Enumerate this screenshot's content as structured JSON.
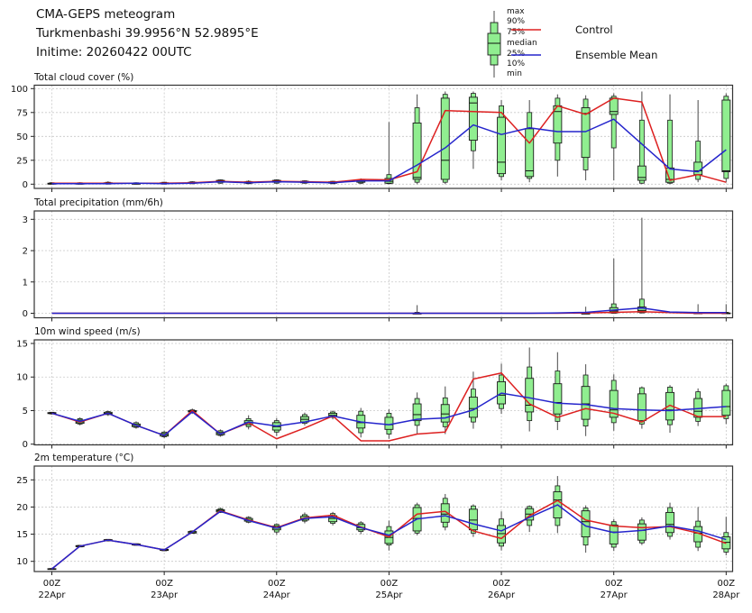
{
  "header": {
    "line1": "CMA-GEPS meteogram",
    "line2": "Turkmenbashi 39.9956°N 52.9895°E",
    "line3": "Initime: 20260422 00UTC"
  },
  "legend": {
    "box_labels": [
      "max",
      "90%",
      "75%",
      "median",
      "25%",
      "10%",
      "min"
    ],
    "control_label": "Control",
    "mean_label": "Ensemble Mean"
  },
  "colors": {
    "box_fill": "#90ee90",
    "box_edge": "#1b1b1b",
    "whisker": "#666666",
    "grid": "#c9c9c9",
    "border": "#333333",
    "control": "#dd2020",
    "mean": "#2525cc"
  },
  "chart_data": {
    "type": "meteogram-boxplot",
    "x_start": "2026-04-22 00UTC",
    "x_step_hours": 6,
    "n_points": 25,
    "x_tick_every": 4,
    "x_tick_labels": [
      {
        "top": "00Z",
        "bottom": "22Apr"
      },
      {
        "top": "00Z",
        "bottom": "23Apr"
      },
      {
        "top": "00Z",
        "bottom": "24Apr"
      },
      {
        "top": "00Z",
        "bottom": "25Apr"
      },
      {
        "top": "00Z",
        "bottom": "26Apr"
      },
      {
        "top": "00Z",
        "bottom": "27Apr"
      },
      {
        "top": "00Z",
        "bottom": "28Apr"
      }
    ],
    "box_stats_order": [
      "min",
      "p10",
      "p25",
      "median",
      "p75",
      "p90",
      "max"
    ],
    "panels": [
      {
        "id": "cloud",
        "title": "Total cloud cover (%)",
        "ylim": [
          0,
          100
        ],
        "yticks": [
          0,
          25,
          50,
          75,
          100
        ],
        "control": [
          1,
          1,
          1,
          1,
          1,
          1.5,
          3,
          2,
          3,
          2.5,
          2,
          5,
          4.5,
          13,
          77,
          76,
          75,
          43,
          82,
          73,
          90,
          86,
          4,
          10,
          2
        ],
        "mean": [
          0.5,
          0.5,
          0.5,
          1,
          0.5,
          1,
          2.5,
          1.5,
          2.5,
          2,
          1.5,
          3.5,
          3.5,
          20,
          38,
          62,
          52,
          59,
          55,
          55,
          68,
          42,
          16,
          13,
          36
        ],
        "boxes": [
          [
            0,
            0,
            0,
            0.5,
            1,
            1.5,
            2
          ],
          [
            0,
            0,
            0,
            0.5,
            1,
            1.5,
            2
          ],
          [
            0,
            0,
            0.5,
            1,
            1.5,
            2,
            3
          ],
          [
            0,
            0,
            0,
            0.5,
            1,
            1.5,
            2
          ],
          [
            0,
            0,
            0.5,
            1,
            1.5,
            2,
            2.5
          ],
          [
            0,
            0.5,
            1,
            1.5,
            2,
            2.5,
            3
          ],
          [
            0.5,
            1,
            2,
            3,
            4,
            4.5,
            5
          ],
          [
            0,
            0.5,
            1,
            2,
            2.5,
            3,
            4
          ],
          [
            0.5,
            1,
            2,
            3,
            4,
            4.5,
            5
          ],
          [
            0.5,
            1,
            1.5,
            2.5,
            3,
            3.5,
            4
          ],
          [
            0,
            0.5,
            1,
            2,
            2.5,
            3,
            3.5
          ],
          [
            0,
            1,
            2,
            3,
            4,
            5,
            6
          ],
          [
            0,
            0.5,
            1,
            3,
            6,
            10,
            65
          ],
          [
            0,
            2,
            5,
            7,
            64,
            80,
            94
          ],
          [
            0,
            2,
            5,
            25,
            90,
            94,
            97
          ],
          [
            16,
            35,
            46,
            85,
            91,
            95,
            97
          ],
          [
            4,
            8,
            11,
            23,
            70,
            82,
            88
          ],
          [
            2,
            6,
            8,
            14,
            58,
            75,
            88
          ],
          [
            8,
            25,
            43,
            76,
            82,
            90,
            94
          ],
          [
            4,
            15,
            28,
            74,
            80,
            89,
            93
          ],
          [
            4,
            38,
            73,
            76,
            90,
            92,
            95
          ],
          [
            0,
            1,
            4,
            7,
            19,
            67,
            97
          ],
          [
            0,
            1,
            2,
            5,
            17,
            67,
            94
          ],
          [
            2,
            5,
            10,
            14,
            23,
            45,
            88
          ],
          [
            2,
            6,
            13,
            14,
            88,
            92,
            95
          ]
        ]
      },
      {
        "id": "precip",
        "title": "Total precipitation (mm/6h)",
        "ylim": [
          0,
          3
        ],
        "yticks": [
          0,
          1,
          2,
          3
        ],
        "control": [
          0,
          0,
          0,
          0,
          0,
          0,
          0,
          0,
          0,
          0,
          0,
          0,
          0,
          0,
          0,
          0,
          0,
          0,
          0,
          0.01,
          0.03,
          0.05,
          0.02,
          0,
          0
        ],
        "mean": [
          0,
          0,
          0,
          0,
          0,
          0,
          0,
          0,
          0,
          0,
          0,
          0,
          0,
          0,
          0,
          0,
          0,
          0,
          0.01,
          0.03,
          0.1,
          0.17,
          0.04,
          0.02,
          0.02
        ],
        "boxes": [
          null,
          null,
          null,
          null,
          null,
          null,
          null,
          null,
          null,
          null,
          null,
          null,
          null,
          [
            0,
            0,
            0,
            0,
            0,
            0.03,
            0.26
          ],
          null,
          null,
          null,
          null,
          null,
          [
            0,
            0,
            0,
            0,
            0,
            0.03,
            0.21
          ],
          [
            0,
            0,
            0.01,
            0.07,
            0.18,
            0.3,
            1.75
          ],
          [
            0,
            0.01,
            0.03,
            0.09,
            0.2,
            0.45,
            3.05
          ],
          null,
          [
            0,
            0,
            0,
            0,
            0.01,
            0.03,
            0.29
          ],
          [
            0,
            0,
            0,
            0,
            0.01,
            0.03,
            0.29
          ]
        ]
      },
      {
        "id": "wind",
        "title": "10m wind speed (m/s)",
        "ylim": [
          0,
          15
        ],
        "yticks": [
          0,
          5,
          10,
          15
        ],
        "control": [
          4.6,
          3.3,
          4.6,
          2.8,
          1.3,
          5.0,
          1.5,
          3.2,
          0.8,
          2.4,
          4.2,
          0.5,
          0.5,
          1.5,
          1.8,
          9.7,
          10.6,
          6.0,
          4.0,
          5.3,
          4.6,
          3.3,
          5.8,
          4.1,
          4.1
        ],
        "mean": [
          4.6,
          3.4,
          4.6,
          2.8,
          1.3,
          4.8,
          1.5,
          3.3,
          2.7,
          3.3,
          4.2,
          3.3,
          2.9,
          3.7,
          3.9,
          5.1,
          7.6,
          6.9,
          6.1,
          5.9,
          5.3,
          5.1,
          5.0,
          5.3,
          5.6
        ],
        "boxes": [
          [
            4.4,
            4.5,
            4.55,
            4.6,
            4.7,
            4.75,
            4.8
          ],
          [
            2.8,
            3.0,
            3.1,
            3.3,
            3.6,
            3.8,
            4.0
          ],
          [
            4.2,
            4.4,
            4.5,
            4.6,
            4.75,
            4.85,
            5.0
          ],
          [
            2.3,
            2.5,
            2.6,
            2.8,
            3.0,
            3.2,
            3.4
          ],
          [
            0.9,
            1.1,
            1.2,
            1.4,
            1.6,
            1.8,
            2.0
          ],
          [
            4.5,
            4.7,
            4.8,
            4.9,
            5.0,
            5.1,
            5.3
          ],
          [
            1.1,
            1.3,
            1.4,
            1.6,
            1.8,
            2.0,
            2.2
          ],
          [
            2.2,
            2.6,
            2.9,
            3.2,
            3.5,
            3.8,
            4.3
          ],
          [
            1.2,
            1.8,
            2.1,
            2.6,
            3.2,
            3.5,
            3.9
          ],
          [
            2.8,
            3.1,
            3.3,
            3.7,
            4.1,
            4.4,
            4.7
          ],
          [
            3.7,
            4.0,
            4.1,
            4.3,
            4.6,
            4.8,
            5.0
          ],
          [
            1.0,
            1.7,
            2.4,
            3.2,
            4.3,
            4.9,
            5.4
          ],
          [
            0.8,
            1.5,
            2.2,
            2.9,
            4.0,
            4.6,
            5.2
          ],
          [
            1.5,
            2.8,
            3.5,
            4.4,
            6.0,
            6.8,
            7.7
          ],
          [
            1.5,
            2.6,
            3.3,
            4.5,
            5.9,
            6.9,
            8.6
          ],
          [
            2.3,
            3.3,
            4.0,
            5.3,
            7.0,
            8.2,
            10.8
          ],
          [
            4.5,
            5.3,
            6.0,
            7.3,
            9.3,
            10.3,
            12.0
          ],
          [
            1.9,
            3.5,
            4.8,
            5.8,
            9.8,
            11.5,
            14.4
          ],
          [
            2.1,
            3.4,
            4.5,
            6.2,
            9.0,
            10.9,
            13.7
          ],
          [
            1.2,
            2.7,
            3.7,
            6.0,
            8.6,
            10.3,
            11.9
          ],
          [
            2.0,
            3.2,
            4.0,
            5.1,
            8.0,
            9.5,
            10.4
          ],
          [
            2.3,
            3.0,
            3.5,
            5.1,
            7.5,
            8.4,
            8.6
          ],
          [
            1.7,
            2.9,
            3.6,
            5.1,
            7.7,
            8.5,
            8.8
          ],
          [
            2.7,
            3.4,
            4.0,
            4.9,
            6.8,
            7.8,
            8.3
          ],
          [
            3.0,
            3.8,
            4.3,
            5.6,
            8.0,
            8.7,
            9.0
          ]
        ]
      },
      {
        "id": "temp",
        "title": "2m temperature (°C)",
        "ylim": [
          10,
          25
        ],
        "yticks": [
          10,
          15,
          20,
          25
        ],
        "control": [
          8.6,
          12.8,
          13.9,
          13.1,
          12.1,
          15.4,
          19.3,
          17.6,
          16.2,
          18.0,
          18.5,
          16.3,
          14.5,
          18.7,
          19.2,
          15.6,
          14.2,
          18.4,
          21.2,
          17.6,
          16.5,
          16.2,
          16.4,
          15.2,
          13.3
        ],
        "mean": [
          8.6,
          12.8,
          13.9,
          13.1,
          12.1,
          15.4,
          19.2,
          17.5,
          16.1,
          17.9,
          18.2,
          16.2,
          14.8,
          17.8,
          18.4,
          16.9,
          15.6,
          18.1,
          20.4,
          16.5,
          15.3,
          15.7,
          16.5,
          15.6,
          14.0
        ],
        "boxes": [
          [
            8.5,
            8.52,
            8.55,
            8.6,
            8.65,
            8.68,
            8.7
          ],
          [
            12.6,
            12.65,
            12.7,
            12.8,
            12.9,
            12.95,
            13.0
          ],
          [
            13.7,
            13.75,
            13.8,
            13.9,
            14.0,
            14.05,
            14.1
          ],
          [
            12.9,
            12.95,
            13.0,
            13.1,
            13.2,
            13.25,
            13.3
          ],
          [
            11.9,
            11.95,
            12.0,
            12.1,
            12.2,
            12.25,
            12.3
          ],
          [
            15.1,
            15.15,
            15.2,
            15.4,
            15.5,
            15.6,
            15.7
          ],
          [
            18.9,
            19.0,
            19.1,
            19.3,
            19.5,
            19.7,
            19.9
          ],
          [
            17.0,
            17.2,
            17.4,
            17.6,
            17.9,
            18.1,
            18.3
          ],
          [
            14.9,
            15.4,
            15.8,
            16.1,
            16.5,
            16.8,
            17.0
          ],
          [
            17.0,
            17.4,
            17.6,
            17.9,
            18.3,
            18.6,
            19.0
          ],
          [
            16.6,
            17.0,
            17.3,
            17.9,
            18.4,
            18.8,
            19.1
          ],
          [
            15.0,
            15.5,
            15.8,
            16.2,
            16.8,
            17.1,
            17.4
          ],
          [
            12.0,
            13.0,
            13.3,
            14.4,
            15.6,
            16.4,
            17.5
          ],
          [
            14.8,
            15.2,
            15.6,
            17.9,
            19.9,
            20.4,
            20.8
          ],
          [
            15.7,
            16.3,
            17.2,
            18.7,
            20.6,
            21.6,
            22.4
          ],
          [
            14.5,
            15.2,
            15.8,
            17.6,
            19.6,
            20.2,
            20.5
          ],
          [
            12.0,
            12.8,
            13.4,
            15.1,
            16.6,
            17.8,
            19.2
          ],
          [
            15.4,
            16.6,
            17.6,
            18.7,
            19.7,
            20.1,
            20.3
          ],
          [
            15.2,
            16.6,
            18.0,
            21.3,
            22.8,
            23.9,
            25.7
          ],
          [
            11.6,
            13.0,
            14.5,
            17.3,
            19.3,
            19.8,
            20.3
          ],
          [
            11.9,
            12.6,
            13.2,
            15.4,
            16.7,
            17.3,
            17.8
          ],
          [
            13.0,
            13.4,
            13.9,
            15.7,
            16.9,
            17.6,
            18.1
          ],
          [
            14.0,
            14.6,
            15.3,
            16.8,
            19.0,
            19.9,
            20.8
          ],
          [
            11.9,
            12.6,
            13.6,
            15.2,
            16.4,
            17.4,
            20.0
          ],
          [
            11.1,
            11.7,
            12.3,
            13.5,
            14.5,
            15.3,
            18.2
          ]
        ]
      }
    ]
  }
}
